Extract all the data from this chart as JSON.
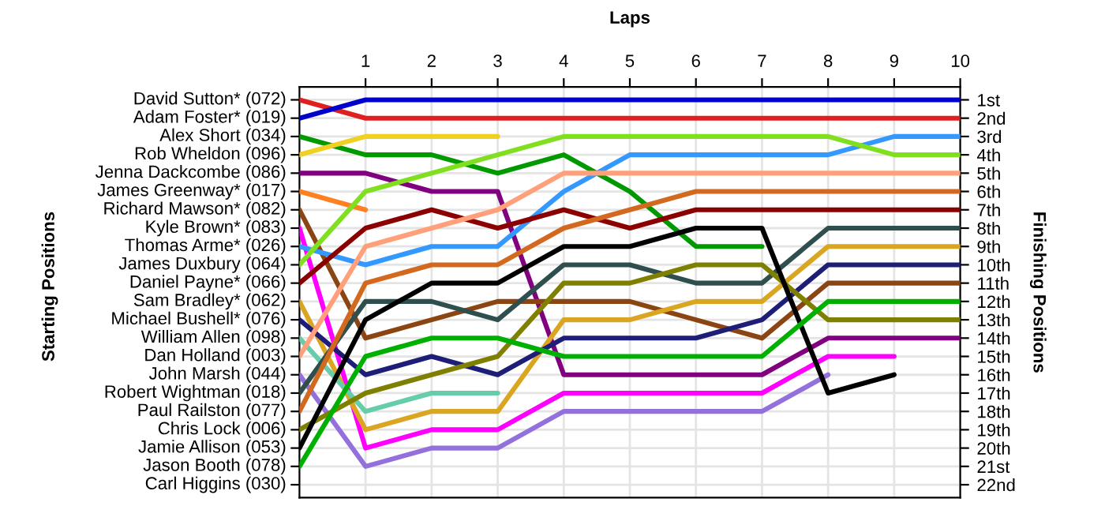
{
  "chart_data": {
    "type": "line",
    "xlabel": "Laps",
    "ylabel": "Finishing Positions",
    "x": [
      0,
      1,
      2,
      3,
      4,
      5,
      6,
      7,
      8,
      9,
      10
    ],
    "xlim": [
      0,
      10
    ],
    "xticks": [
      1,
      2,
      3,
      4,
      5,
      6,
      7,
      8,
      9,
      10
    ],
    "ylim": [
      22.7,
      0.3
    ],
    "yticks": [
      {
        "value": 1,
        "label": "1st"
      },
      {
        "value": 2,
        "label": "2nd"
      },
      {
        "value": 3,
        "label": "3rd"
      },
      {
        "value": 4,
        "label": "4th"
      },
      {
        "value": 5,
        "label": "5th"
      },
      {
        "value": 6,
        "label": "6th"
      },
      {
        "value": 7,
        "label": "7th"
      },
      {
        "value": 8,
        "label": "8th"
      },
      {
        "value": 9,
        "label": "9th"
      },
      {
        "value": 10,
        "label": "10th"
      },
      {
        "value": 11,
        "label": "11th"
      },
      {
        "value": 12,
        "label": "12th"
      },
      {
        "value": 13,
        "label": "13th"
      },
      {
        "value": 14,
        "label": "14th"
      },
      {
        "value": 15,
        "label": "15th"
      },
      {
        "value": 16,
        "label": "16th"
      },
      {
        "value": 17,
        "label": "17th"
      },
      {
        "value": 18,
        "label": "18th"
      },
      {
        "value": 19,
        "label": "19th"
      },
      {
        "value": 20,
        "label": "20th"
      },
      {
        "value": 21,
        "label": "21st"
      },
      {
        "value": 22,
        "label": "22nd"
      }
    ],
    "annotations": [
      "Starting Positions",
      "David Sutton* (072)",
      "Adam Foster* (019)",
      "Alex Short (034)",
      "Rob Wheldon (096)",
      "Jenna Dackcombe (086)",
      "James Greenway* (017)",
      "Richard Mawson* (082)",
      "Kyle Brown* (083)",
      "Thomas Arme* (026)",
      "James Duxbury (064)",
      "Daniel Payne* (066)",
      "Sam Bradley* (062)",
      "Michael Bushell* (076)",
      "William Allen (098)",
      "Dan Holland (003)",
      "John Marsh (044)",
      "Robert Wightman (018)",
      "Paul Railston (077)",
      "Chris Lock (006)",
      "Jamie Allison (053)",
      "Jason Booth (078)",
      "Carl Higgins (030)"
    ],
    "grid": true,
    "marker": "none",
    "line_style": "solid",
    "series": [
      {
        "color": "#e02020",
        "values": [
          1,
          2,
          2,
          2,
          2,
          2,
          2,
          2,
          2,
          2,
          2
        ]
      },
      {
        "color": "#0000cc",
        "values": [
          2,
          1,
          1,
          1,
          1,
          1,
          1,
          1,
          1,
          1,
          1
        ]
      },
      {
        "color": "#009900",
        "values": [
          3,
          4,
          4,
          5,
          4,
          6,
          9,
          9,
          null,
          null,
          null
        ]
      },
      {
        "color": "#f0d020",
        "values": [
          4,
          3,
          3,
          3,
          null,
          null,
          null,
          null,
          null,
          null,
          null
        ]
      },
      {
        "color": "#800080",
        "values": [
          5,
          5,
          6,
          6,
          16,
          16,
          16,
          16,
          14,
          14,
          14
        ]
      },
      {
        "color": "#ff8020",
        "values": [
          6,
          7,
          null,
          null,
          null,
          null,
          null,
          null,
          null,
          null,
          null
        ]
      },
      {
        "color": "#8b4513",
        "values": [
          7,
          14,
          13,
          12,
          12,
          12,
          13,
          14,
          11,
          11,
          11
        ]
      },
      {
        "color": "#ff00ff",
        "values": [
          8,
          20,
          19,
          19,
          17,
          17,
          17,
          17,
          15,
          15,
          null
        ]
      },
      {
        "color": "#3399ff",
        "values": [
          9,
          10,
          9,
          9,
          6,
          4,
          4,
          4,
          4,
          3,
          3
        ]
      },
      {
        "color": "#80e020",
        "values": [
          10,
          6,
          5,
          4,
          3,
          3,
          3,
          3,
          3,
          4,
          4
        ]
      },
      {
        "color": "#8b0000",
        "values": [
          11,
          8,
          7,
          8,
          7,
          8,
          7,
          7,
          7,
          7,
          7
        ]
      },
      {
        "color": "#daa520",
        "values": [
          12,
          19,
          18,
          18,
          13,
          13,
          12,
          12,
          9,
          9,
          9
        ]
      },
      {
        "color": "#1e1e78",
        "values": [
          13,
          16,
          15,
          16,
          14,
          14,
          14,
          13,
          10,
          10,
          10
        ]
      },
      {
        "color": "#66cdaa",
        "values": [
          14,
          18,
          17,
          17,
          null,
          null,
          null,
          null,
          null,
          null,
          null
        ]
      },
      {
        "color": "#ffa07a",
        "values": [
          15,
          9,
          8,
          7,
          5,
          5,
          5,
          5,
          5,
          5,
          5
        ]
      },
      {
        "color": "#9370db",
        "values": [
          16,
          21,
          20,
          20,
          18,
          18,
          18,
          18,
          16,
          null,
          null
        ]
      },
      {
        "color": "#2f4f4f",
        "values": [
          17,
          12,
          12,
          13,
          10,
          10,
          11,
          11,
          8,
          8,
          8
        ]
      },
      {
        "color": "#d2691e",
        "values": [
          18,
          11,
          10,
          10,
          8,
          7,
          6,
          6,
          6,
          6,
          6
        ]
      },
      {
        "color": "#808000",
        "values": [
          19,
          17,
          16,
          15,
          11,
          11,
          10,
          10,
          13,
          13,
          13
        ]
      },
      {
        "color": "#000000",
        "values": [
          20,
          13,
          11,
          11,
          9,
          9,
          8,
          8,
          17,
          16,
          null
        ]
      },
      {
        "color": "#00b000",
        "values": [
          21,
          15,
          14,
          14,
          15,
          15,
          15,
          15,
          12,
          12,
          12
        ]
      }
    ]
  }
}
